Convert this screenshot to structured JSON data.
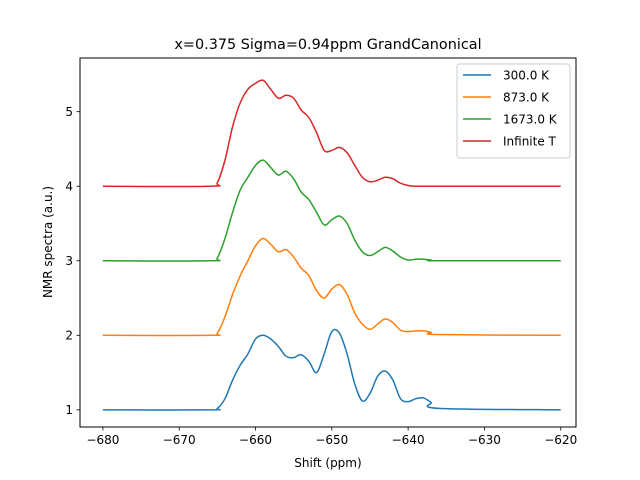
{
  "chart_data": {
    "type": "line",
    "title": "x=0.375  Sigma=0.94ppm  GrandCanonical",
    "xlabel": "Shift (ppm)",
    "ylabel": "NMR spectra (a.u.)",
    "xlim": [
      -683,
      -618
    ],
    "ylim": [
      0.77,
      5.72
    ],
    "xticks": [
      -680,
      -670,
      -660,
      -650,
      -640,
      -630,
      -620
    ],
    "yticks": [
      1,
      2,
      3,
      4,
      5
    ],
    "xtick_labels": [
      "−680",
      "−670",
      "−660",
      "−650",
      "−640",
      "−630",
      "−620"
    ],
    "ytick_labels": [
      "1",
      "2",
      "3",
      "4",
      "5"
    ],
    "grid": false,
    "legend_position": "top-right",
    "series": [
      {
        "name": "300.0 K",
        "color": "#1f77b4",
        "x": [
          -680,
          -666,
          -665,
          -664,
          -663,
          -662,
          -661,
          -660,
          -659,
          -658,
          -657,
          -656,
          -655,
          -654,
          -653,
          -652,
          -651,
          -650,
          -649,
          -648,
          -647,
          -646,
          -645,
          -644,
          -643,
          -642,
          -641,
          -640,
          -639,
          -638,
          -637,
          -636,
          -620
        ],
        "y": [
          1.0,
          1.0,
          1.02,
          1.15,
          1.4,
          1.6,
          1.75,
          1.95,
          2.0,
          1.95,
          1.85,
          1.72,
          1.7,
          1.74,
          1.65,
          1.5,
          1.75,
          2.05,
          2.03,
          1.75,
          1.35,
          1.12,
          1.22,
          1.45,
          1.52,
          1.4,
          1.15,
          1.11,
          1.15,
          1.16,
          1.1,
          1.02,
          1.0
        ]
      },
      {
        "name": "873.0 K",
        "color": "#ff7f0e",
        "x": [
          -680,
          -666,
          -665,
          -664,
          -663,
          -662,
          -661,
          -660,
          -659,
          -658,
          -657,
          -656,
          -655,
          -654,
          -653,
          -652,
          -651,
          -650,
          -649,
          -648,
          -647,
          -646,
          -645,
          -644,
          -643,
          -642,
          -641,
          -640,
          -639,
          -638,
          -637,
          -636,
          -620
        ],
        "y": [
          2.0,
          2.0,
          2.03,
          2.25,
          2.55,
          2.8,
          3.0,
          3.2,
          3.3,
          3.22,
          3.12,
          3.15,
          3.05,
          2.9,
          2.8,
          2.6,
          2.5,
          2.62,
          2.68,
          2.55,
          2.3,
          2.15,
          2.08,
          2.15,
          2.22,
          2.17,
          2.07,
          2.05,
          2.06,
          2.06,
          2.04,
          2.01,
          2.0
        ]
      },
      {
        "name": "1673.0 K",
        "color": "#2ca02c",
        "x": [
          -680,
          -666,
          -665,
          -664,
          -663,
          -662,
          -661,
          -660,
          -659,
          -658,
          -657,
          -656,
          -655,
          -654,
          -653,
          -652,
          -651,
          -650,
          -649,
          -648,
          -647,
          -646,
          -645,
          -644,
          -643,
          -642,
          -641,
          -640,
          -639,
          -638,
          -637,
          -636,
          -620
        ],
        "y": [
          3.0,
          3.0,
          3.04,
          3.3,
          3.65,
          3.95,
          4.12,
          4.28,
          4.35,
          4.25,
          4.15,
          4.2,
          4.1,
          3.92,
          3.82,
          3.65,
          3.48,
          3.55,
          3.6,
          3.5,
          3.28,
          3.12,
          3.07,
          3.12,
          3.18,
          3.13,
          3.05,
          3.01,
          3.02,
          3.02,
          3.01,
          3.0,
          3.0
        ]
      },
      {
        "name": "Infinite T",
        "color": "#d62728",
        "x": [
          -680,
          -666,
          -665,
          -664,
          -663,
          -662,
          -661,
          -660,
          -659,
          -658,
          -657,
          -656,
          -655,
          -654,
          -653,
          -652,
          -651,
          -650,
          -649,
          -648,
          -647,
          -646,
          -645,
          -644,
          -643,
          -642,
          -641,
          -640,
          -639,
          -638,
          -637,
          -636,
          -620
        ],
        "y": [
          4.0,
          4.0,
          4.05,
          4.35,
          4.8,
          5.12,
          5.3,
          5.38,
          5.42,
          5.3,
          5.18,
          5.22,
          5.18,
          5.02,
          4.92,
          4.72,
          4.48,
          4.48,
          4.52,
          4.45,
          4.28,
          4.12,
          4.06,
          4.08,
          4.12,
          4.1,
          4.04,
          4.01,
          4.0,
          4.0,
          4.0,
          4.0,
          4.0
        ]
      }
    ]
  }
}
